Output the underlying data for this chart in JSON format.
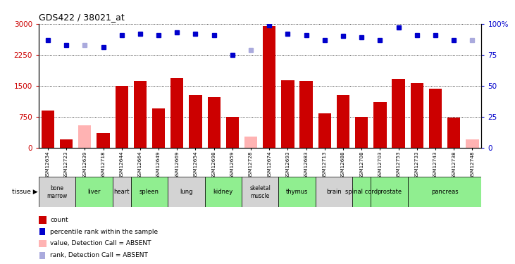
{
  "title": "GDS422 / 38021_at",
  "samples": [
    "GSM12634",
    "GSM12723",
    "GSM12639",
    "GSM12718",
    "GSM12644",
    "GSM12664",
    "GSM12649",
    "GSM12669",
    "GSM12654",
    "GSM12698",
    "GSM12659",
    "GSM12728",
    "GSM12674",
    "GSM12693",
    "GSM12683",
    "GSM12713",
    "GSM12688",
    "GSM12708",
    "GSM12703",
    "GSM12753",
    "GSM12733",
    "GSM12743",
    "GSM12738",
    "GSM12748"
  ],
  "values": [
    900,
    200,
    550,
    350,
    1500,
    1620,
    950,
    1680,
    1280,
    1230,
    750,
    270,
    2950,
    1640,
    1610,
    830,
    1270,
    750,
    1100,
    1670,
    1560,
    1430,
    730,
    210
  ],
  "absent": [
    false,
    false,
    true,
    false,
    false,
    false,
    false,
    false,
    false,
    false,
    false,
    true,
    false,
    false,
    false,
    false,
    false,
    false,
    false,
    false,
    false,
    false,
    false,
    true
  ],
  "percentile_rank": [
    87,
    83,
    83,
    81,
    91,
    92,
    91,
    93,
    92,
    91,
    75,
    79,
    99,
    92,
    91,
    87,
    90,
    89,
    87,
    97,
    91,
    91,
    87,
    87
  ],
  "rank_absent": [
    false,
    false,
    true,
    false,
    false,
    false,
    false,
    false,
    false,
    false,
    false,
    true,
    false,
    false,
    false,
    false,
    false,
    false,
    false,
    false,
    false,
    false,
    false,
    true
  ],
  "tissues": [
    {
      "name": "bone\nmarrow",
      "samples": [
        "GSM12634",
        "GSM12723"
      ],
      "color": "#d3d3d3"
    },
    {
      "name": "liver",
      "samples": [
        "GSM12639",
        "GSM12718"
      ],
      "color": "#90ee90"
    },
    {
      "name": "heart",
      "samples": [
        "GSM12644"
      ],
      "color": "#d3d3d3"
    },
    {
      "name": "spleen",
      "samples": [
        "GSM12664",
        "GSM12649"
      ],
      "color": "#90ee90"
    },
    {
      "name": "lung",
      "samples": [
        "GSM12669",
        "GSM12654"
      ],
      "color": "#d3d3d3"
    },
    {
      "name": "kidney",
      "samples": [
        "GSM12698",
        "GSM12659"
      ],
      "color": "#90ee90"
    },
    {
      "name": "skeletal\nmuscle",
      "samples": [
        "GSM12728",
        "GSM12674"
      ],
      "color": "#d3d3d3"
    },
    {
      "name": "thymus",
      "samples": [
        "GSM12693",
        "GSM12683"
      ],
      "color": "#90ee90"
    },
    {
      "name": "brain",
      "samples": [
        "GSM12713",
        "GSM12688"
      ],
      "color": "#d3d3d3"
    },
    {
      "name": "spinal cord",
      "samples": [
        "GSM12708"
      ],
      "color": "#90ee90"
    },
    {
      "name": "prostate",
      "samples": [
        "GSM12703",
        "GSM12753"
      ],
      "color": "#90ee90"
    },
    {
      "name": "pancreas",
      "samples": [
        "GSM12733",
        "GSM12743",
        "GSM12738",
        "GSM12748"
      ],
      "color": "#90ee90"
    }
  ],
  "ylim_left": [
    0,
    3000
  ],
  "ylim_right": [
    0,
    100
  ],
  "yticks_left": [
    0,
    750,
    1500,
    2250,
    3000
  ],
  "yticks_right": [
    0,
    25,
    50,
    75,
    100
  ],
  "bar_color": "#cc0000",
  "absent_bar_color": "#ffb3b3",
  "rank_color": "#0000cc",
  "rank_absent_color": "#aaaadd",
  "bg_color": "#ffffff",
  "legend": [
    {
      "label": "count",
      "color": "#cc0000",
      "type": "rect"
    },
    {
      "label": "percentile rank within the sample",
      "color": "#0000cc",
      "type": "square"
    },
    {
      "label": "value, Detection Call = ABSENT",
      "color": "#ffb3b3",
      "type": "rect"
    },
    {
      "label": "rank, Detection Call = ABSENT",
      "color": "#aaaadd",
      "type": "square"
    }
  ]
}
